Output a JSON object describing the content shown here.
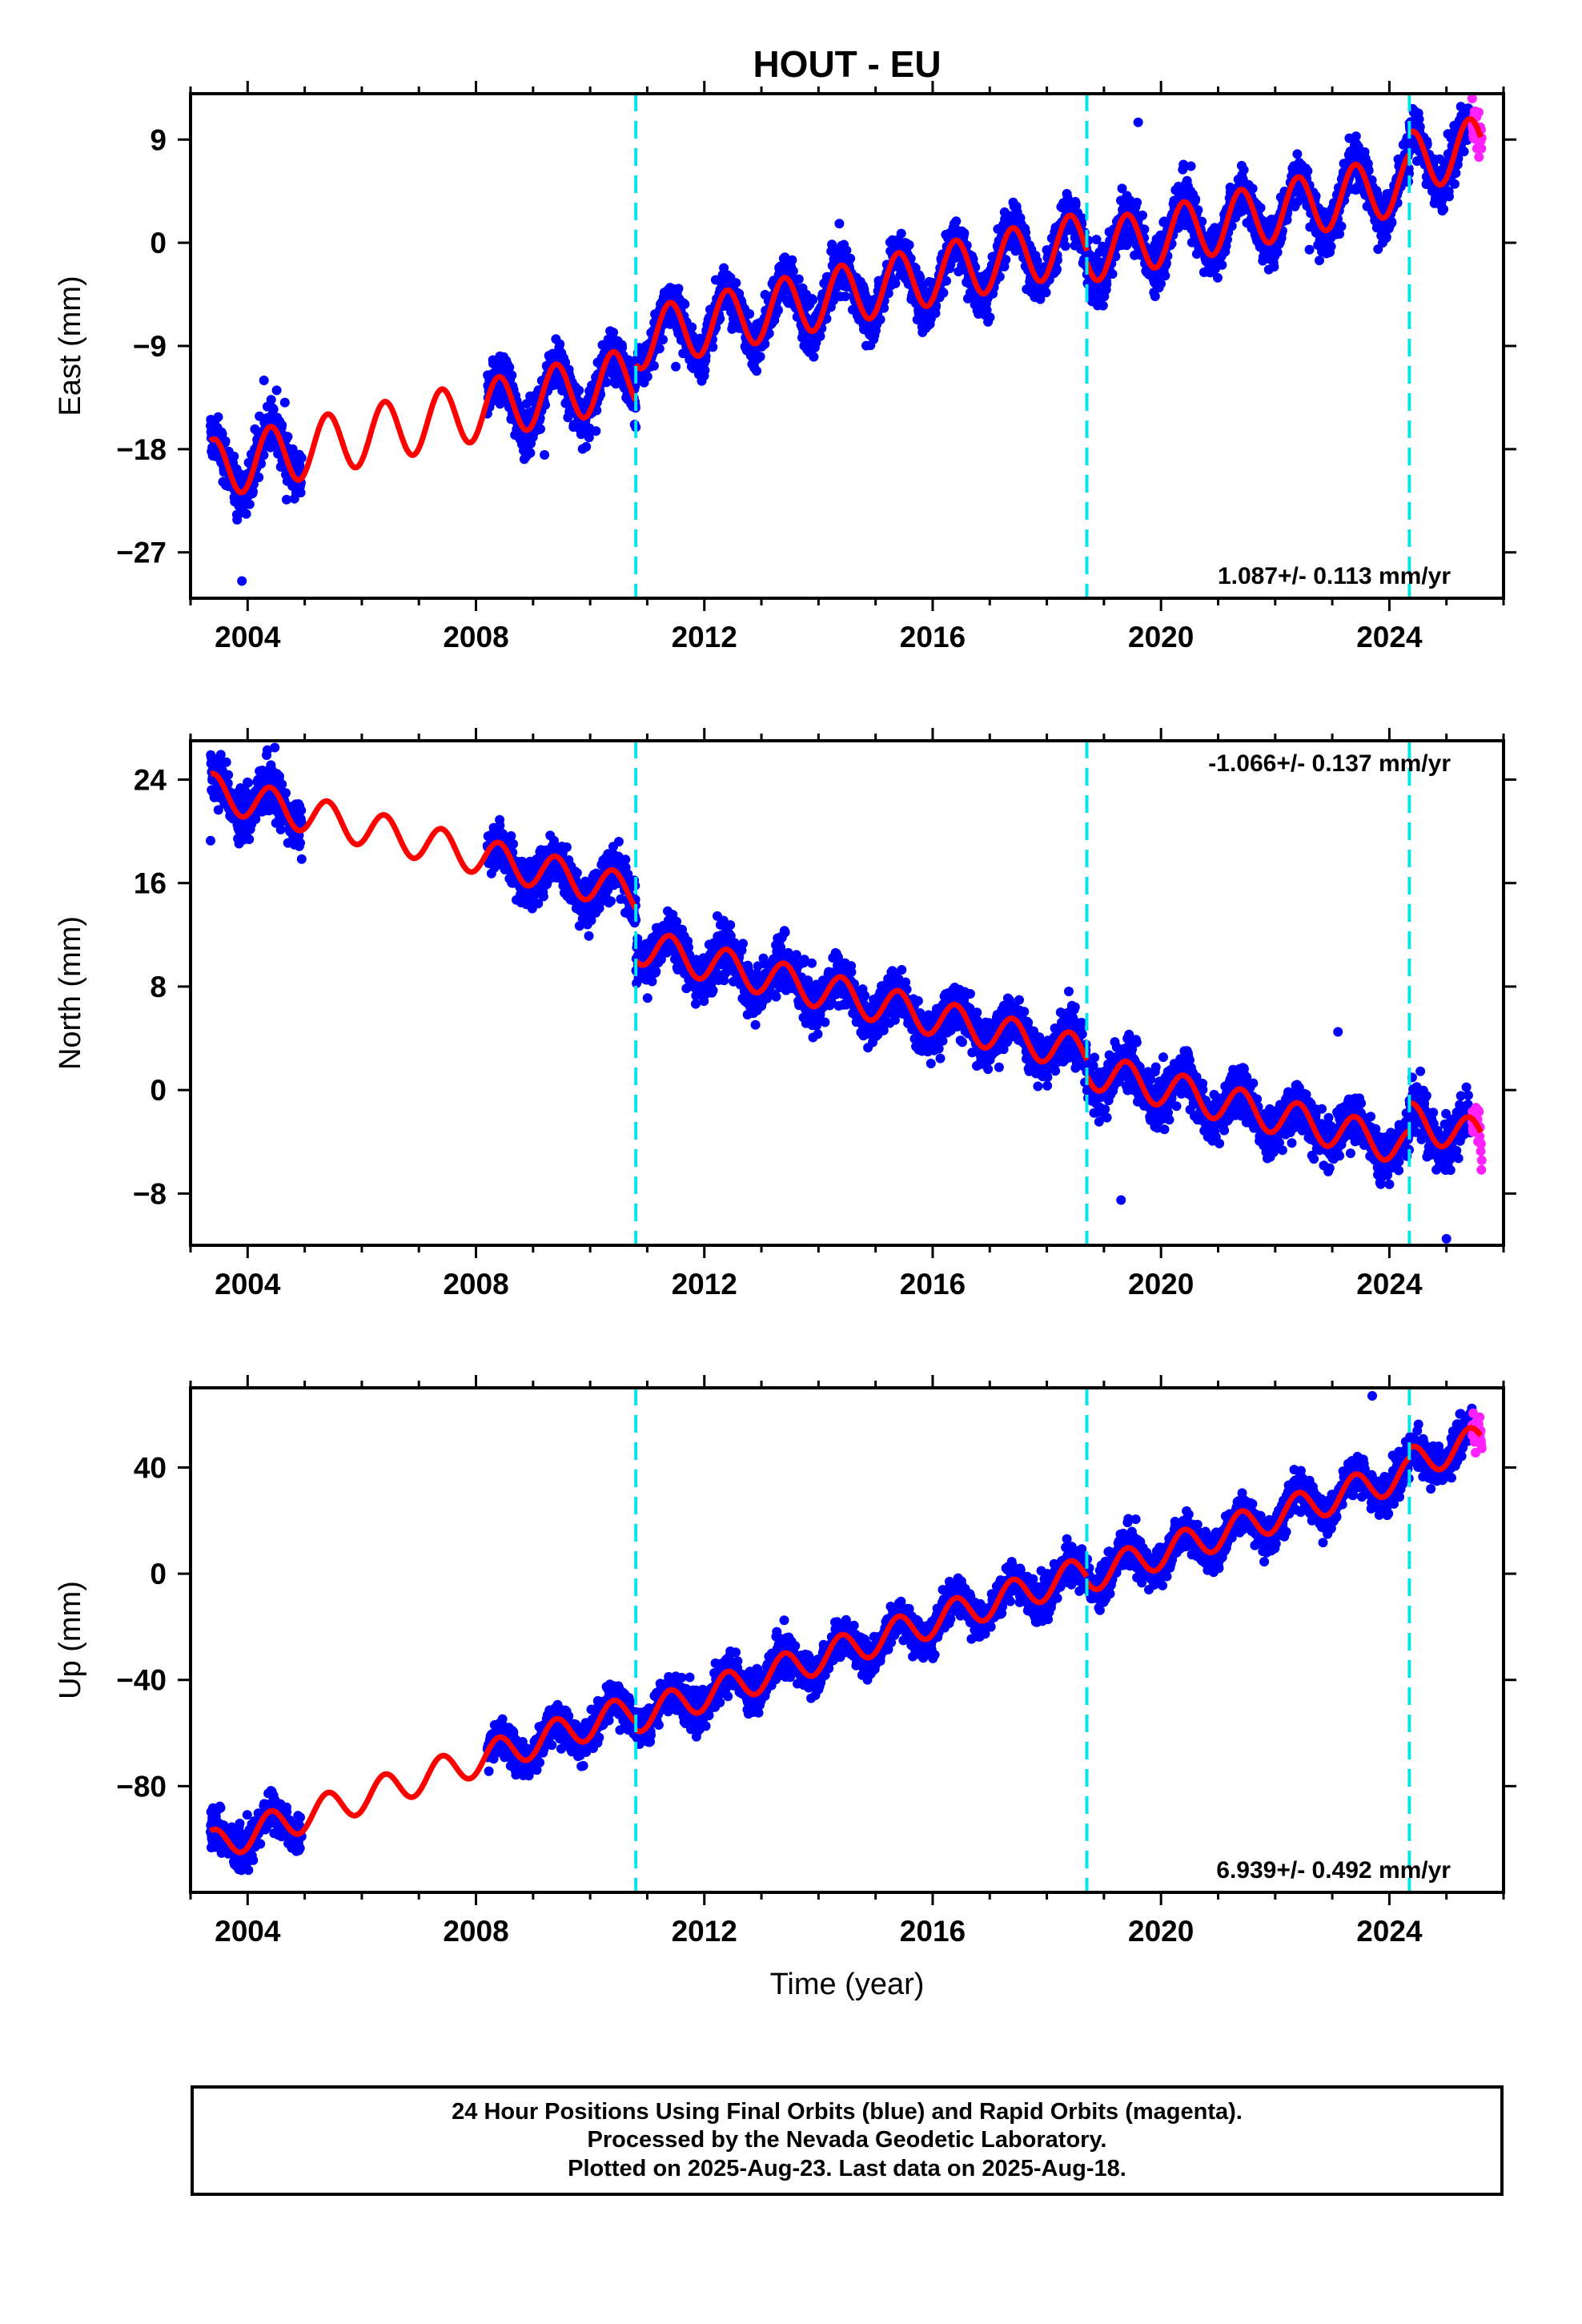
{
  "title": "HOUT - EU",
  "colors": {
    "final": "#0000ff",
    "rapid": "#ff22ff",
    "model": "#ff0000",
    "breaks": "#00e5ee"
  },
  "chart_data": [
    {
      "type": "scatter",
      "panel": "east",
      "ylabel": "East (mm)",
      "xlabel": "",
      "xlim": [
        2003.0,
        2026.0
      ],
      "ylim": [
        -31,
        13
      ],
      "x_ticks": [
        2004,
        2008,
        2012,
        2016,
        2020,
        2024
      ],
      "y_ticks": [
        -27,
        -18,
        -9,
        0,
        9
      ],
      "rate_label": "1.087+/- 0.113 mm/yr",
      "rate_position": "bottom-right",
      "breaks": [
        2010.8,
        2018.7,
        2024.35
      ],
      "model": {
        "rate": 1.087,
        "amplitude": 2.6,
        "anchor_year": 2025.5,
        "anchor_value": 7.5,
        "segments": [
          [
            2003.35,
            2010.8,
            -3.2
          ],
          [
            2010.8,
            2018.7,
            0.0
          ],
          [
            2018.7,
            2024.35,
            -1.0
          ],
          [
            2024.35,
            2025.6,
            0.8
          ]
        ]
      },
      "final_orbits": {
        "segments": [
          [
            2003.35,
            2004.95
          ],
          [
            2008.2,
            2025.45
          ]
        ],
        "spread": 1.8,
        "outliers": [
          [
            2003.9,
            -29.5
          ],
          [
            2009.2,
            -18.5
          ],
          [
            2011.5,
            -10.8
          ],
          [
            2019.6,
            10.5
          ],
          [
            2022.6,
            -0.6
          ]
        ]
      },
      "rapid_orbits": {
        "x_range": [
          2025.45,
          2025.62
        ]
      }
    },
    {
      "type": "scatter",
      "panel": "north",
      "ylabel": "North (mm)",
      "xlabel": "",
      "xlim": [
        2003.0,
        2026.0
      ],
      "ylim": [
        -12,
        27
      ],
      "x_ticks": [
        2004,
        2008,
        2012,
        2016,
        2020,
        2024
      ],
      "y_ticks": [
        -8,
        0,
        8,
        16,
        24
      ],
      "rate_label": "-1.066+/- 0.137 mm/yr",
      "rate_position": "top-right",
      "breaks": [
        2010.8,
        2018.7,
        2024.35
      ],
      "model": {
        "rate": -1.066,
        "amplitude": 1.4,
        "anchor_year": 2025.5,
        "anchor_value": -4.5,
        "segments": [
          [
            2003.35,
            2010.8,
            4.0
          ],
          [
            2010.8,
            2018.7,
            0.0
          ],
          [
            2018.7,
            2024.35,
            -1.2
          ],
          [
            2024.35,
            2025.6,
            0.9
          ]
        ]
      },
      "final_orbits": {
        "segments": [
          [
            2003.35,
            2004.95
          ],
          [
            2008.2,
            2025.45
          ]
        ],
        "spread": 1.6,
        "outliers": [
          [
            2023.1,
            4.5
          ],
          [
            2025.0,
            -11.5
          ],
          [
            2019.3,
            -8.5
          ]
        ]
      },
      "rapid_orbits": {
        "x_range": [
          2025.45,
          2025.62
        ]
      }
    },
    {
      "type": "scatter",
      "panel": "up",
      "ylabel": "Up (mm)",
      "xlabel": "Time (year)",
      "xlim": [
        2003.0,
        2026.0
      ],
      "ylim": [
        -120,
        70
      ],
      "x_ticks": [
        2004,
        2008,
        2012,
        2016,
        2020,
        2024
      ],
      "y_ticks": [
        -80,
        -40,
        0,
        40
      ],
      "rate_label": "6.939+/- 0.492 mm/yr",
      "rate_position": "bottom-right",
      "breaks": [
        2010.8,
        2018.7,
        2024.35
      ],
      "model": {
        "rate": 6.939,
        "amplitude": 6.0,
        "anchor_year": 2025.5,
        "anchor_value": 48.0,
        "segments": [
          [
            2003.35,
            2010.8,
            3.0
          ],
          [
            2010.8,
            2018.7,
            0.0
          ],
          [
            2018.7,
            2024.35,
            -2.0
          ],
          [
            2024.35,
            2025.6,
            1.5
          ]
        ]
      },
      "final_orbits": {
        "segments": [
          [
            2003.35,
            2004.95
          ],
          [
            2008.2,
            2025.45
          ]
        ],
        "spread": 6.0,
        "outliers": [
          [
            2023.7,
            67.0
          ],
          [
            2003.8,
            -110.0
          ]
        ]
      },
      "rapid_orbits": {
        "x_range": [
          2025.45,
          2025.62
        ]
      }
    }
  ],
  "footer": {
    "line1": "24 Hour Positions Using Final Orbits (blue) and Rapid Orbits (magenta).",
    "line2": "Processed by the Nevada Geodetic Laboratory.",
    "line3": "Plotted on 2025-Aug-23. Last data on 2025-Aug-18."
  }
}
